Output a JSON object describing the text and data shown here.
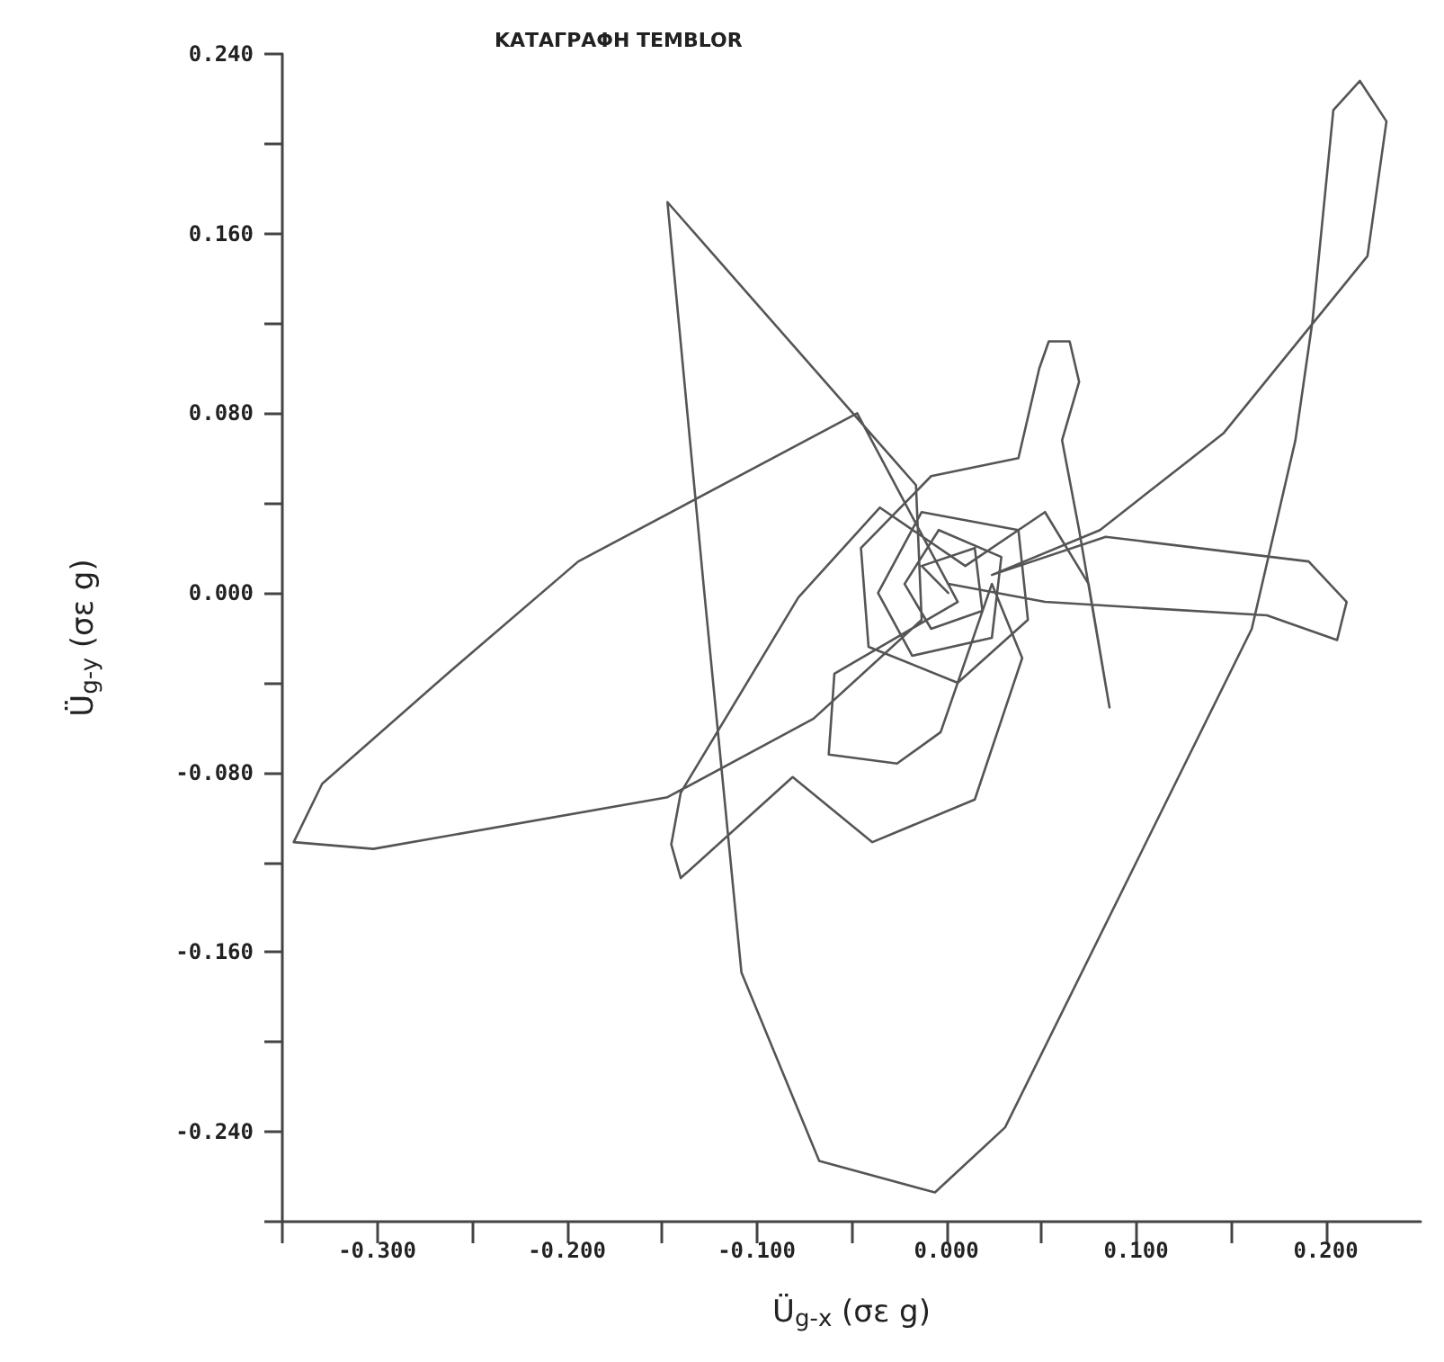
{
  "chart_data": {
    "type": "line",
    "title": "ΚΑΤΑΓΡΑΦΗ TEMBLOR",
    "xlabel": "Ü$_{g-x}$ (σε g)",
    "ylabel": "Ü$_{g-y}$ (σε g)",
    "xlim": [
      -0.35,
      0.25
    ],
    "ylim": [
      -0.28,
      0.24
    ],
    "xticks": [
      {
        "value": -0.35,
        "label": null
      },
      {
        "value": -0.3,
        "label": "-0.300"
      },
      {
        "value": -0.25,
        "label": null
      },
      {
        "value": -0.2,
        "label": "-0.200"
      },
      {
        "value": -0.15,
        "label": null
      },
      {
        "value": -0.1,
        "label": "-0.100"
      },
      {
        "value": -0.05,
        "label": null
      },
      {
        "value": 0,
        "label": "0.000"
      },
      {
        "value": 0.05,
        "label": null
      },
      {
        "value": 0.1,
        "label": "0.100"
      },
      {
        "value": 0.15,
        "label": null
      },
      {
        "value": 0.2,
        "label": "0.200"
      }
    ],
    "yticks": [
      {
        "value": -0.28,
        "label": null
      },
      {
        "value": -0.24,
        "label": "-0.240"
      },
      {
        "value": -0.2,
        "label": null
      },
      {
        "value": -0.16,
        "label": "-0.160"
      },
      {
        "value": -0.12,
        "label": null
      },
      {
        "value": -0.08,
        "label": "-0.080"
      },
      {
        "value": -0.04,
        "label": null
      },
      {
        "value": 0,
        "label": "0.000"
      },
      {
        "value": 0.04,
        "label": null
      },
      {
        "value": 0.08,
        "label": "0.080"
      },
      {
        "value": 0.12,
        "label": null
      },
      {
        "value": 0.16,
        "label": "0.160"
      },
      {
        "value": 0.2,
        "label": null
      },
      {
        "value": 0.24,
        "label": "0.240"
      }
    ],
    "line_style": "solid",
    "series": [
      {
        "color": "#555555",
        "x": [
          0.001,
          -0.013,
          0.015,
          0.019,
          -0.008,
          -0.022,
          -0.004,
          0.029,
          0.024,
          -0.018,
          -0.036,
          -0.013,
          0.038,
          0.043,
          0.006,
          -0.041,
          -0.045,
          -0.008,
          0.038,
          0.049,
          0.054,
          0.065,
          0.07,
          0.061,
          0.07,
          0.086,
          0.075,
          0.052,
          0.01,
          -0.035,
          -0.078,
          -0.14,
          -0.145,
          -0.14,
          -0.081,
          -0.039,
          0.015,
          0.04,
          0.024,
          -0.003,
          -0.026,
          -0.062,
          -0.059,
          0.006,
          -0.047,
          -0.194,
          -0.263,
          -0.329,
          -0.344,
          -0.302,
          -0.147,
          -0.07,
          -0.013,
          -0.016,
          -0.147,
          -0.128,
          -0.108,
          -0.067,
          -0.006,
          0.031,
          0.161,
          0.184,
          0.193,
          0.204,
          0.218,
          0.232,
          0.222,
          0.146,
          0.081,
          0.024,
          0.084,
          0.191,
          0.211,
          0.206,
          0.169,
          0.052,
          0.001
        ],
        "values": [
          0.0,
          0.012,
          0.02,
          -0.008,
          -0.016,
          0.004,
          0.028,
          0.016,
          -0.02,
          -0.028,
          0.0,
          0.036,
          0.028,
          -0.012,
          -0.04,
          -0.024,
          0.02,
          0.052,
          0.06,
          0.1,
          0.112,
          0.112,
          0.094,
          0.068,
          0.028,
          -0.051,
          0.004,
          0.036,
          0.012,
          0.038,
          -0.002,
          -0.089,
          -0.112,
          -0.127,
          -0.082,
          -0.111,
          -0.092,
          -0.029,
          0.004,
          -0.062,
          -0.076,
          -0.072,
          -0.036,
          -0.004,
          0.08,
          0.014,
          -0.036,
          -0.085,
          -0.111,
          -0.114,
          -0.091,
          -0.056,
          -0.012,
          0.048,
          0.174,
          0.004,
          -0.169,
          -0.253,
          -0.267,
          -0.238,
          -0.016,
          0.068,
          0.121,
          0.215,
          0.228,
          0.21,
          0.15,
          0.071,
          0.028,
          0.008,
          0.025,
          0.014,
          -0.004,
          -0.021,
          -0.01,
          -0.004,
          0.004
        ]
      }
    ]
  }
}
